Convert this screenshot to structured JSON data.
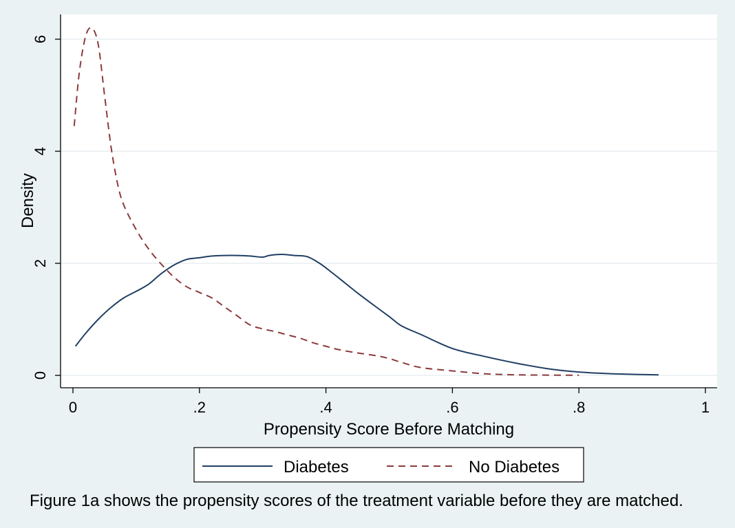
{
  "caption": "Figure 1a shows the propensity scores of the treatment variable before they are matched.",
  "chart_data": {
    "type": "line",
    "title": "",
    "xlabel": "Propensity Score Before Matching",
    "ylabel": "Density",
    "xlim": [
      0,
      1
    ],
    "ylim": [
      0,
      6.5
    ],
    "x_ticks": [
      0,
      0.2,
      0.4,
      0.6,
      0.8,
      1
    ],
    "x_tick_labels": [
      "0",
      ".2",
      ".4",
      ".6",
      ".8",
      "1"
    ],
    "y_ticks": [
      0,
      2,
      4,
      6
    ],
    "y_tick_labels": [
      "0",
      "2",
      "4",
      "6"
    ],
    "grid": true,
    "legend_position": "bottom",
    "plot_background": "#ffffff",
    "page_background": "#eaf2f3",
    "series": [
      {
        "name": "Diabetes",
        "color": "#1f3e63",
        "dash": "solid",
        "x": [
          0.004,
          0.02,
          0.04,
          0.06,
          0.08,
          0.1,
          0.12,
          0.14,
          0.16,
          0.18,
          0.2,
          0.22,
          0.24,
          0.26,
          0.28,
          0.3,
          0.31,
          0.33,
          0.35,
          0.37,
          0.39,
          0.41,
          0.43,
          0.45,
          0.47,
          0.5,
          0.52,
          0.55,
          0.6,
          0.65,
          0.7,
          0.75,
          0.8,
          0.85,
          0.9,
          0.926
        ],
        "values": [
          0.52,
          0.75,
          1.0,
          1.21,
          1.38,
          1.5,
          1.63,
          1.82,
          1.97,
          2.07,
          2.1,
          2.13,
          2.14,
          2.14,
          2.13,
          2.11,
          2.14,
          2.16,
          2.14,
          2.12,
          2.0,
          1.83,
          1.65,
          1.47,
          1.3,
          1.05,
          0.88,
          0.73,
          0.48,
          0.34,
          0.22,
          0.12,
          0.06,
          0.03,
          0.015,
          0.01
        ]
      },
      {
        "name": "No Diabetes",
        "color": "#8c3a3a",
        "dash": "dashed",
        "x": [
          0.002,
          0.01,
          0.02,
          0.03,
          0.04,
          0.05,
          0.06,
          0.07,
          0.08,
          0.1,
          0.12,
          0.14,
          0.16,
          0.18,
          0.2,
          0.22,
          0.24,
          0.26,
          0.28,
          0.3,
          0.32,
          0.34,
          0.36,
          0.38,
          0.4,
          0.42,
          0.45,
          0.48,
          0.5,
          0.52,
          0.55,
          0.6,
          0.65,
          0.7,
          0.75,
          0.8
        ],
        "values": [
          4.45,
          5.4,
          6.05,
          6.2,
          5.9,
          5.0,
          4.1,
          3.45,
          3.05,
          2.6,
          2.25,
          1.98,
          1.75,
          1.58,
          1.48,
          1.38,
          1.22,
          1.06,
          0.9,
          0.83,
          0.78,
          0.72,
          0.66,
          0.58,
          0.52,
          0.46,
          0.4,
          0.35,
          0.3,
          0.23,
          0.14,
          0.08,
          0.03,
          0.01,
          0.005,
          0.002
        ]
      }
    ]
  }
}
